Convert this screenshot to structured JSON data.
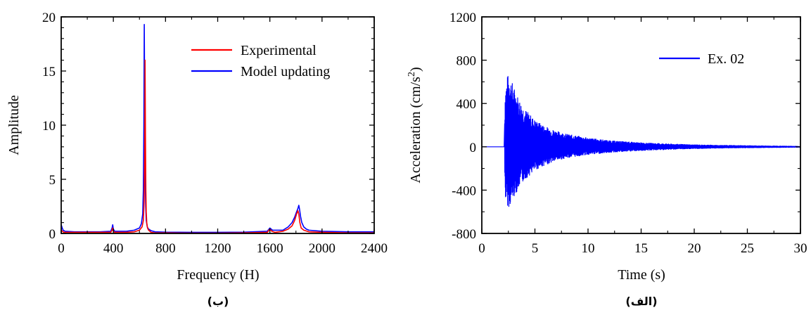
{
  "chart_data": [
    {
      "type": "line",
      "caption": "(ب)",
      "xlabel": "Frequency (H)",
      "ylabel": "Amplitude",
      "xlim": [
        0,
        2400
      ],
      "ylim": [
        0,
        20
      ],
      "xticks": [
        "0",
        "400",
        "800",
        "1200",
        "1600",
        "2000",
        "2400"
      ],
      "yticks": [
        "0",
        "5",
        "10",
        "15",
        "20"
      ],
      "legend_position": "top-right",
      "series": [
        {
          "name": "Experimental",
          "color": "#ff0000",
          "x": [
            0,
            10,
            20,
            100,
            200,
            300,
            380,
            390,
            395,
            400,
            410,
            500,
            560,
            600,
            620,
            630,
            636,
            640,
            643,
            646,
            649,
            652,
            656,
            662,
            670,
            690,
            720,
            800,
            1000,
            1200,
            1400,
            1580,
            1600,
            1615,
            1640,
            1700,
            1740,
            1770,
            1790,
            1805,
            1815,
            1822,
            1830,
            1840,
            1860,
            1900,
            2000,
            2200,
            2400
          ],
          "values": [
            0.3,
            0.2,
            0.1,
            0.1,
            0.1,
            0.1,
            0.1,
            0.3,
            0.5,
            0.2,
            0.1,
            0.1,
            0.15,
            0.3,
            0.6,
            1.2,
            3.0,
            7.0,
            16.0,
            9.0,
            4.0,
            2.0,
            1.0,
            0.5,
            0.3,
            0.1,
            0.05,
            0.05,
            0.03,
            0.03,
            0.05,
            0.1,
            0.4,
            0.2,
            0.1,
            0.2,
            0.4,
            0.7,
            1.2,
            1.8,
            2.1,
            1.8,
            1.0,
            0.5,
            0.3,
            0.15,
            0.1,
            0.05,
            0.05
          ]
        },
        {
          "name": "Model updating",
          "color": "#0000ff",
          "x": [
            0,
            8,
            15,
            30,
            100,
            200,
            300,
            380,
            390,
            395,
            400,
            410,
            500,
            560,
            600,
            615,
            625,
            630,
            634,
            637,
            640,
            644,
            648,
            652,
            660,
            670,
            690,
            720,
            800,
            1000,
            1200,
            1400,
            1580,
            1600,
            1620,
            1700,
            1740,
            1770,
            1790,
            1805,
            1815,
            1822,
            1828,
            1835,
            1845,
            1860,
            1880,
            1900,
            2000,
            2200,
            2400
          ],
          "values": [
            0.8,
            0.5,
            0.3,
            0.2,
            0.15,
            0.15,
            0.15,
            0.2,
            0.5,
            0.8,
            0.4,
            0.2,
            0.2,
            0.3,
            0.5,
            0.9,
            1.8,
            4.0,
            10.0,
            19.3,
            12.0,
            5.0,
            2.5,
            1.2,
            0.6,
            0.4,
            0.25,
            0.15,
            0.12,
            0.1,
            0.1,
            0.12,
            0.2,
            0.5,
            0.3,
            0.3,
            0.6,
            1.0,
            1.5,
            2.0,
            2.3,
            2.6,
            2.2,
            1.6,
            1.0,
            0.6,
            0.4,
            0.3,
            0.2,
            0.15,
            0.15
          ]
        }
      ]
    },
    {
      "type": "line",
      "caption": "(الف)",
      "xlabel": "Time (s)",
      "ylabel": "Acceleration (cm/s²)",
      "ylabel_main": "Acceleration (cm/s",
      "ylabel_sup": "2",
      "ylabel_end": ")",
      "xlim": [
        0,
        30
      ],
      "ylim": [
        -800,
        1200
      ],
      "xticks": [
        "0",
        "5",
        "10",
        "15",
        "20",
        "25",
        "30"
      ],
      "yticks": [
        "-800",
        "-400",
        "0",
        "400",
        "800",
        "1200"
      ],
      "legend_position": "top-right",
      "series": [
        {
          "name": "Ex. 02",
          "color": "#0000ff",
          "envelope_t": [
            0,
            2.1,
            2.2,
            2.4,
            2.6,
            3.0,
            3.5,
            4.0,
            5.0,
            6.0,
            7.0,
            8.0,
            10.0,
            12.0,
            15.0,
            18.0,
            20.0,
            22.0,
            25.0,
            28.0,
            30.0
          ],
          "envelope_upper": [
            0,
            0,
            560,
            660,
            680,
            560,
            450,
            360,
            250,
            190,
            150,
            120,
            85,
            60,
            40,
            28,
            22,
            18,
            14,
            10,
            8
          ],
          "envelope_lower": [
            0,
            0,
            -480,
            -550,
            -560,
            -470,
            -380,
            -310,
            -220,
            -170,
            -130,
            -105,
            -75,
            -55,
            -38,
            -26,
            -20,
            -16,
            -12,
            -9,
            -7
          ]
        }
      ]
    }
  ]
}
